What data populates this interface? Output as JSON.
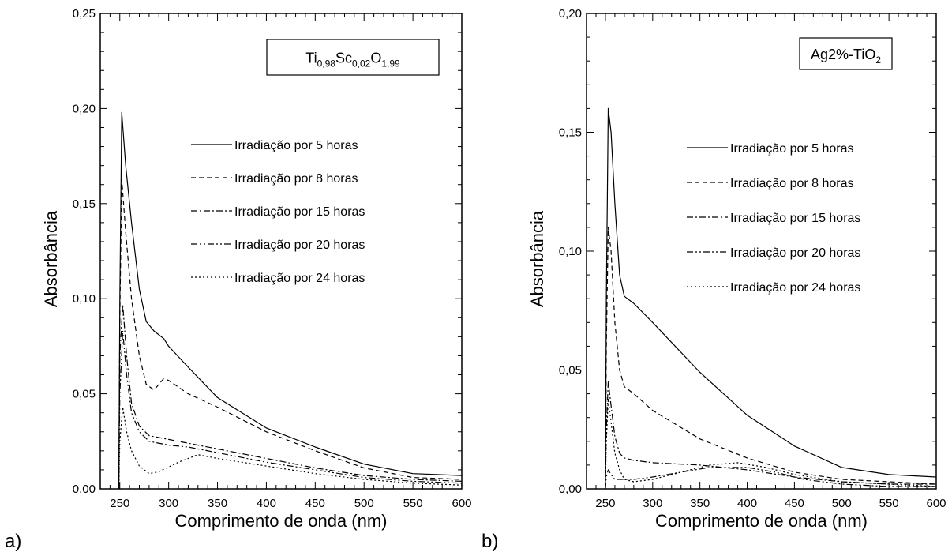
{
  "chart_data": [
    {
      "type": "line",
      "panel_label": "a)",
      "xlabel": "Comprimento de onda (nm)",
      "ylabel": "Absorbância",
      "xlim": [
        230,
        600
      ],
      "ylim": [
        0,
        0.25
      ],
      "xticks": [
        "250",
        "300",
        "350",
        "400",
        "450",
        "500",
        "550",
        "600"
      ],
      "yticks": [
        "0,00",
        "0,05",
        "0,10",
        "0,15",
        "0,20",
        "0,25"
      ],
      "sample_label": {
        "base": "Ti",
        "sub1": "0,98",
        "mid": "Sc",
        "sub2": "0,02",
        "end": "O",
        "sub3": "1,99"
      },
      "legend_position": "top-right",
      "grid": false,
      "series": [
        {
          "name": "Irradiação por 5 horas",
          "dash": "solid",
          "x": [
            249,
            250,
            252,
            256,
            262,
            270,
            277,
            285,
            295,
            300,
            320,
            350,
            400,
            450,
            500,
            550,
            600
          ],
          "y": [
            0.0,
            0.1,
            0.198,
            0.17,
            0.14,
            0.105,
            0.088,
            0.083,
            0.079,
            0.075,
            0.064,
            0.048,
            0.032,
            0.022,
            0.013,
            0.008,
            0.007
          ]
        },
        {
          "name": "Irradiação por 8 horas",
          "dash": "dashed",
          "x": [
            249,
            250,
            252,
            256,
            262,
            270,
            277,
            285,
            295,
            300,
            320,
            350,
            400,
            450,
            500,
            550,
            600
          ],
          "y": [
            0.0,
            0.09,
            0.163,
            0.135,
            0.1,
            0.07,
            0.055,
            0.052,
            0.058,
            0.057,
            0.05,
            0.043,
            0.03,
            0.02,
            0.011,
            0.006,
            0.005
          ]
        },
        {
          "name": "Irradiação por 15 horas",
          "dash": "dashdot",
          "x": [
            249,
            250,
            253,
            257,
            262,
            270,
            280,
            300,
            320,
            350,
            400,
            450,
            500,
            550,
            600
          ],
          "y": [
            0.0,
            0.07,
            0.097,
            0.07,
            0.045,
            0.033,
            0.028,
            0.026,
            0.024,
            0.021,
            0.016,
            0.011,
            0.007,
            0.005,
            0.004
          ]
        },
        {
          "name": "Irradiação por 20 horas",
          "dash": "dashdotdot",
          "x": [
            249,
            250,
            253,
            257,
            262,
            270,
            280,
            300,
            320,
            350,
            400,
            450,
            500,
            550,
            600
          ],
          "y": [
            0.0,
            0.05,
            0.083,
            0.06,
            0.04,
            0.03,
            0.025,
            0.023,
            0.022,
            0.019,
            0.014,
            0.01,
            0.006,
            0.004,
            0.003
          ]
        },
        {
          "name": "Irradiação por 24 horas",
          "dash": "dotted",
          "x": [
            249,
            250,
            253,
            257,
            262,
            270,
            280,
            290,
            310,
            330,
            350,
            400,
            450,
            500,
            550,
            600
          ],
          "y": [
            0.0,
            0.025,
            0.043,
            0.03,
            0.02,
            0.012,
            0.008,
            0.009,
            0.014,
            0.018,
            0.016,
            0.012,
            0.008,
            0.005,
            0.003,
            0.002
          ]
        }
      ]
    },
    {
      "type": "line",
      "panel_label": "b)",
      "xlabel": "Comprimento de onda (nm)",
      "ylabel": "Absorbância",
      "xlim": [
        230,
        600
      ],
      "ylim": [
        0,
        0.2
      ],
      "xticks": [
        "250",
        "300",
        "350",
        "400",
        "450",
        "500",
        "550",
        "600"
      ],
      "yticks": [
        "0,00",
        "0,05",
        "0,10",
        "0,15",
        "0,20"
      ],
      "sample_label": {
        "base": "Ag2%-TiO",
        "sub1": "2"
      },
      "legend_position": "top-right",
      "grid": false,
      "series": [
        {
          "name": "Irradiação por 5 horas",
          "dash": "solid",
          "x": [
            250,
            251,
            253,
            256,
            260,
            265,
            270,
            280,
            300,
            350,
            400,
            450,
            500,
            550,
            600
          ],
          "y": [
            0.0,
            0.08,
            0.16,
            0.15,
            0.12,
            0.09,
            0.081,
            0.078,
            0.07,
            0.049,
            0.031,
            0.018,
            0.009,
            0.006,
            0.005
          ]
        },
        {
          "name": "Irradiação por 8 horas",
          "dash": "dashed",
          "x": [
            250,
            251,
            253,
            256,
            260,
            265,
            270,
            280,
            300,
            350,
            400,
            450,
            500,
            550,
            600
          ],
          "y": [
            0.0,
            0.06,
            0.11,
            0.1,
            0.07,
            0.05,
            0.043,
            0.04,
            0.033,
            0.021,
            0.013,
            0.007,
            0.004,
            0.003,
            0.002
          ]
        },
        {
          "name": "Irradiação por 15 horas",
          "dash": "dashdot",
          "x": [
            250,
            251,
            253,
            256,
            260,
            265,
            270,
            280,
            300,
            350,
            400,
            450,
            500,
            550,
            600
          ],
          "y": [
            0.0,
            0.025,
            0.045,
            0.035,
            0.022,
            0.015,
            0.013,
            0.012,
            0.011,
            0.01,
            0.008,
            0.005,
            0.003,
            0.002,
            0.002
          ]
        },
        {
          "name": "Irradiação por 20 horas",
          "dash": "dashdotdot",
          "x": [
            250,
            251,
            253,
            256,
            260,
            265,
            270,
            280,
            300,
            330,
            360,
            400,
            430,
            460,
            500,
            550,
            600
          ],
          "y": [
            0.0,
            0.005,
            0.008,
            0.006,
            0.004,
            0.004,
            0.004,
            0.004,
            0.005,
            0.007,
            0.009,
            0.009,
            0.007,
            0.004,
            0.002,
            0.001,
            0.001
          ]
        },
        {
          "name": "Irradiação por 24 horas",
          "dash": "dotted",
          "x": [
            250,
            251,
            253,
            256,
            260,
            265,
            270,
            280,
            300,
            330,
            360,
            390,
            420,
            450,
            500,
            550,
            600
          ],
          "y": [
            0.0,
            0.02,
            0.038,
            0.028,
            0.015,
            0.008,
            0.004,
            0.003,
            0.004,
            0.007,
            0.01,
            0.011,
            0.009,
            0.006,
            0.003,
            0.002,
            0.001
          ]
        }
      ]
    }
  ]
}
